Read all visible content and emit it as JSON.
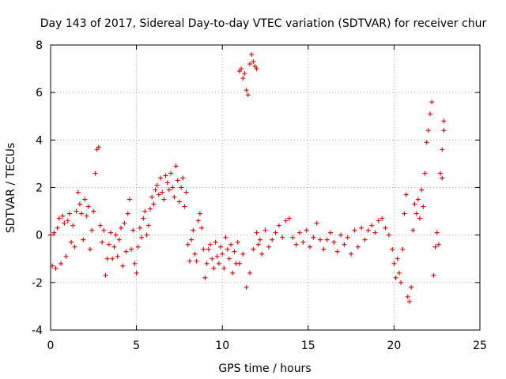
{
  "chart_data": {
    "type": "scatter",
    "title": "Day 143 of 2017, Sidereal Day-to-day VTEC variation (SDTVAR) for receiver chur",
    "xlabel": "GPS time / hours",
    "ylabel": "SDTVAR / TECUs",
    "xlim": [
      0,
      25
    ],
    "ylim": [
      -4,
      8
    ],
    "xticks": [
      0,
      5,
      10,
      15,
      20,
      25
    ],
    "yticks": [
      -4,
      -2,
      0,
      2,
      4,
      6,
      8
    ],
    "xtick_labels": [
      "0",
      "5",
      "10",
      "15",
      "20",
      "25"
    ],
    "ytick_labels": [
      "-4",
      "-2",
      "0",
      "2",
      "4",
      "6",
      "8"
    ],
    "grid": true,
    "marker": "+",
    "color": "#e00000",
    "series": [
      {
        "name": "SDTVAR",
        "points": [
          [
            0.0,
            0.0
          ],
          [
            0.1,
            -1.3
          ],
          [
            0.2,
            0.1
          ],
          [
            0.3,
            -1.4
          ],
          [
            0.4,
            0.3
          ],
          [
            0.5,
            0.7
          ],
          [
            0.6,
            -1.2
          ],
          [
            0.7,
            0.8
          ],
          [
            0.8,
            0.5
          ],
          [
            0.9,
            -0.9
          ],
          [
            1.0,
            0.6
          ],
          [
            1.1,
            0.9
          ],
          [
            1.2,
            -0.3
          ],
          [
            1.3,
            0.4
          ],
          [
            1.4,
            -0.5
          ],
          [
            1.5,
            1.0
          ],
          [
            1.6,
            1.8
          ],
          [
            1.7,
            1.3
          ],
          [
            1.8,
            0.9
          ],
          [
            1.9,
            -0.2
          ],
          [
            2.0,
            1.5
          ],
          [
            2.1,
            0.8
          ],
          [
            2.2,
            1.2
          ],
          [
            2.3,
            -0.6
          ],
          [
            2.4,
            0.2
          ],
          [
            2.5,
            1.0
          ],
          [
            2.6,
            2.6
          ],
          [
            2.7,
            3.6
          ],
          [
            2.8,
            3.7
          ],
          [
            2.9,
            0.4
          ],
          [
            3.0,
            -0.3
          ],
          [
            3.1,
            0.2
          ],
          [
            3.2,
            -1.7
          ],
          [
            3.3,
            -1.0
          ],
          [
            3.4,
            -0.4
          ],
          [
            3.5,
            0.1
          ],
          [
            3.6,
            -1.0
          ],
          [
            3.7,
            -0.5
          ],
          [
            3.8,
            0.0
          ],
          [
            3.9,
            -0.9
          ],
          [
            4.0,
            -0.2
          ],
          [
            4.1,
            0.3
          ],
          [
            4.2,
            -1.3
          ],
          [
            4.3,
            0.5
          ],
          [
            4.4,
            -0.7
          ],
          [
            4.5,
            0.9
          ],
          [
            4.6,
            1.5
          ],
          [
            4.7,
            -0.6
          ],
          [
            4.8,
            0.2
          ],
          [
            4.9,
            -1.2
          ],
          [
            5.0,
            -1.6
          ],
          [
            5.1,
            -0.5
          ],
          [
            5.2,
            0.3
          ],
          [
            5.3,
            -0.1
          ],
          [
            5.4,
            0.7
          ],
          [
            5.5,
            1.0
          ],
          [
            5.6,
            0.0
          ],
          [
            5.7,
            0.4
          ],
          [
            5.8,
            1.1
          ],
          [
            5.9,
            1.6
          ],
          [
            6.0,
            1.3
          ],
          [
            6.1,
            1.9
          ],
          [
            6.2,
            2.1
          ],
          [
            6.3,
            1.7
          ],
          [
            6.4,
            2.4
          ],
          [
            6.5,
            1.8
          ],
          [
            6.6,
            1.5
          ],
          [
            6.7,
            2.5
          ],
          [
            6.8,
            2.2
          ],
          [
            6.9,
            1.9
          ],
          [
            7.0,
            2.6
          ],
          [
            7.1,
            2.0
          ],
          [
            7.2,
            1.6
          ],
          [
            7.3,
            2.9
          ],
          [
            7.4,
            2.3
          ],
          [
            7.5,
            1.4
          ],
          [
            7.6,
            2.0
          ],
          [
            7.7,
            2.4
          ],
          [
            7.8,
            1.2
          ],
          [
            7.9,
            1.8
          ],
          [
            8.0,
            -0.4
          ],
          [
            8.1,
            -1.1
          ],
          [
            8.2,
            -0.2
          ],
          [
            8.3,
            0.2
          ],
          [
            8.4,
            -0.8
          ],
          [
            8.5,
            -1.1
          ],
          [
            8.6,
            0.6
          ],
          [
            8.7,
            0.9
          ],
          [
            8.8,
            0.3
          ],
          [
            8.9,
            -0.6
          ],
          [
            9.0,
            -1.8
          ],
          [
            9.1,
            -1.2
          ],
          [
            9.2,
            -0.6
          ],
          [
            9.3,
            -0.4
          ],
          [
            9.4,
            -1.0
          ],
          [
            9.5,
            -1.4
          ],
          [
            9.6,
            -0.3
          ],
          [
            9.7,
            -0.9
          ],
          [
            9.8,
            -1.2
          ],
          [
            9.9,
            -0.5
          ],
          [
            10.0,
            -0.8
          ],
          [
            10.1,
            -1.4
          ],
          [
            10.2,
            -0.1
          ],
          [
            10.3,
            -0.6
          ],
          [
            10.4,
            -1.0
          ],
          [
            10.5,
            -0.4
          ],
          [
            10.6,
            -1.6
          ],
          [
            10.7,
            -0.7
          ],
          [
            10.8,
            -1.2
          ],
          [
            10.9,
            -0.3
          ],
          [
            11.0,
            6.9
          ],
          [
            11.1,
            7.0
          ],
          [
            11.2,
            6.6
          ],
          [
            11.3,
            6.8
          ],
          [
            11.4,
            6.1
          ],
          [
            11.5,
            5.9
          ],
          [
            11.6,
            7.2
          ],
          [
            11.7,
            7.6
          ],
          [
            11.8,
            7.3
          ],
          [
            11.9,
            7.1
          ],
          [
            12.0,
            7.0
          ],
          [
            11.0,
            -1.2
          ],
          [
            11.2,
            -0.8
          ],
          [
            11.4,
            -2.2
          ],
          [
            11.6,
            -1.6
          ],
          [
            11.8,
            -0.6
          ],
          [
            12.0,
            0.1
          ],
          [
            12.1,
            -0.4
          ],
          [
            12.2,
            -0.2
          ],
          [
            12.3,
            -0.8
          ],
          [
            12.5,
            0.2
          ],
          [
            12.7,
            -0.5
          ],
          [
            12.9,
            -0.2
          ],
          [
            13.1,
            0.1
          ],
          [
            13.3,
            0.4
          ],
          [
            13.5,
            -0.1
          ],
          [
            13.7,
            0.6
          ],
          [
            13.9,
            0.7
          ],
          [
            14.1,
            -0.1
          ],
          [
            14.3,
            -0.4
          ],
          [
            14.5,
            0.1
          ],
          [
            14.7,
            -0.3
          ],
          [
            14.9,
            0.2
          ],
          [
            15.1,
            -0.5
          ],
          [
            15.3,
            -0.1
          ],
          [
            15.5,
            0.5
          ],
          [
            15.7,
            -0.2
          ],
          [
            15.9,
            -0.6
          ],
          [
            16.1,
            -0.2
          ],
          [
            16.3,
            0.1
          ],
          [
            16.5,
            -0.3
          ],
          [
            16.7,
            -0.7
          ],
          [
            16.9,
            0.0
          ],
          [
            17.1,
            -0.4
          ],
          [
            17.3,
            -0.1
          ],
          [
            17.5,
            -0.8
          ],
          [
            17.7,
            0.2
          ],
          [
            17.9,
            -0.5
          ],
          [
            18.1,
            0.3
          ],
          [
            18.3,
            -0.2
          ],
          [
            18.5,
            0.2
          ],
          [
            18.7,
            0.4
          ],
          [
            18.9,
            0.1
          ],
          [
            19.1,
            0.6
          ],
          [
            19.3,
            0.7
          ],
          [
            19.5,
            0.3
          ],
          [
            19.7,
            0.0
          ],
          [
            19.9,
            -0.6
          ],
          [
            20.0,
            -1.2
          ],
          [
            20.1,
            -1.8
          ],
          [
            20.2,
            -1.0
          ],
          [
            20.3,
            -1.6
          ],
          [
            20.4,
            -2.0
          ],
          [
            20.5,
            -0.6
          ],
          [
            20.6,
            0.9
          ],
          [
            20.7,
            1.7
          ],
          [
            20.8,
            -2.6
          ],
          [
            20.9,
            -2.8
          ],
          [
            21.0,
            -2.2
          ],
          [
            21.1,
            0.2
          ],
          [
            21.2,
            1.3
          ],
          [
            21.3,
            0.9
          ],
          [
            21.4,
            1.5
          ],
          [
            21.5,
            0.7
          ],
          [
            21.6,
            1.9
          ],
          [
            21.7,
            1.2
          ],
          [
            21.8,
            2.6
          ],
          [
            21.9,
            3.9
          ],
          [
            22.0,
            4.4
          ],
          [
            22.1,
            5.1
          ],
          [
            22.2,
            5.6
          ],
          [
            22.3,
            -1.7
          ],
          [
            22.4,
            -0.5
          ],
          [
            22.5,
            0.1
          ],
          [
            22.6,
            -0.4
          ],
          [
            22.7,
            2.6
          ],
          [
            22.8,
            3.6
          ],
          [
            22.9,
            4.8
          ],
          [
            22.8,
            2.4
          ],
          [
            22.9,
            4.4
          ]
        ]
      }
    ]
  }
}
